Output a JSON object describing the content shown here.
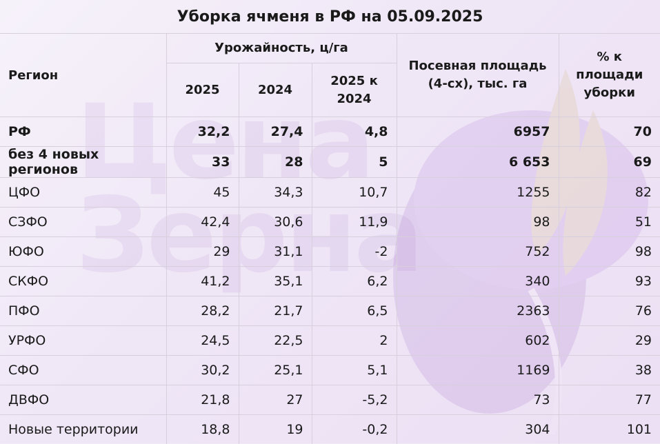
{
  "title": "Уборка ячменя в РФ на 05.09.2025",
  "watermark": {
    "line1": "Цена",
    "line2": "Зерна"
  },
  "header": {
    "region": "Регион",
    "yield_group": "Урожайность, ц/га",
    "year_2025": "2025",
    "year_2024": "2024",
    "diff": "2025 к 2024",
    "sown_area": "Посевная площадь (4-сх), тыс. га",
    "harvest_pct": "% к площади уборки"
  },
  "rows": [
    {
      "region": "РФ",
      "y2025": "32,2",
      "y2024": "27,4",
      "diff": "4,8",
      "area": "6957",
      "pct": "70",
      "bold": true
    },
    {
      "region": "без 4 новых регионов",
      "y2025": "33",
      "y2024": "28",
      "diff": "5",
      "area": "6 653",
      "pct": "69",
      "bold": true
    },
    {
      "region": "ЦФО",
      "y2025": "45",
      "y2024": "34,3",
      "diff": "10,7",
      "area": "1255",
      "pct": "82",
      "bold": false
    },
    {
      "region": "СЗФО",
      "y2025": "42,4",
      "y2024": "30,6",
      "diff": "11,9",
      "area": "98",
      "pct": "51",
      "bold": false
    },
    {
      "region": "ЮФО",
      "y2025": "29",
      "y2024": "31,1",
      "diff": "-2",
      "area": "752",
      "pct": "98",
      "bold": false
    },
    {
      "region": "СКФО",
      "y2025": "41,2",
      "y2024": "35,1",
      "diff": "6,2",
      "area": "340",
      "pct": "93",
      "bold": false
    },
    {
      "region": "ПФО",
      "y2025": "28,2",
      "y2024": "21,7",
      "diff": "6,5",
      "area": "2363",
      "pct": "76",
      "bold": false
    },
    {
      "region": "УРФО",
      "y2025": "24,5",
      "y2024": "22,5",
      "diff": "2",
      "area": "602",
      "pct": "29",
      "bold": false
    },
    {
      "region": "СФО",
      "y2025": "30,2",
      "y2024": "25,1",
      "diff": "5,1",
      "area": "1169",
      "pct": "38",
      "bold": false
    },
    {
      "region": "ДВФО",
      "y2025": "21,8",
      "y2024": "27",
      "diff": "-5,2",
      "area": "73",
      "pct": "77",
      "bold": false
    },
    {
      "region": "Новые территории",
      "y2025": "18,8",
      "y2024": "19",
      "diff": "-0,2",
      "area": "304",
      "pct": "101",
      "bold": false
    }
  ]
}
